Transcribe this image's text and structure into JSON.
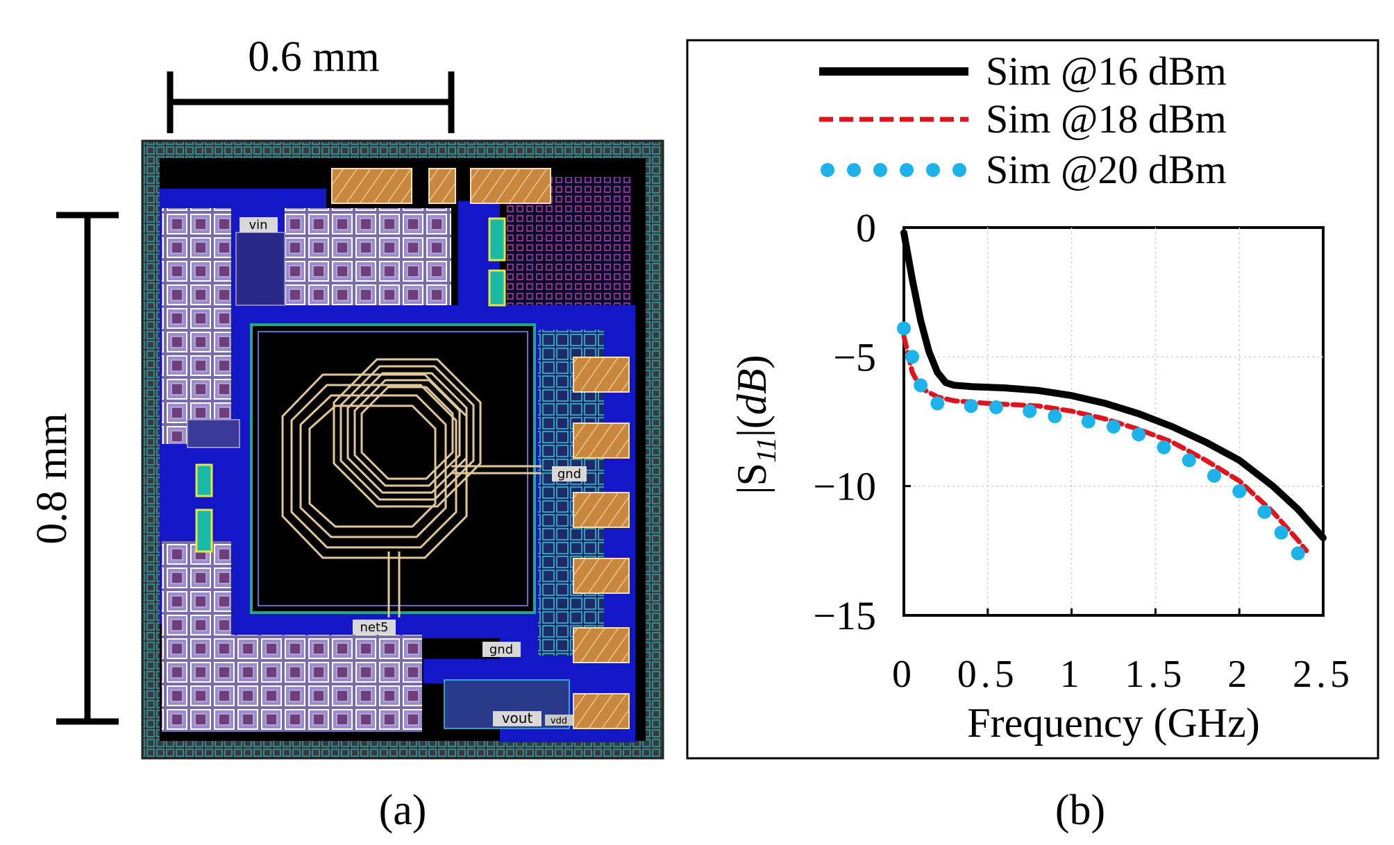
{
  "panel_a": {
    "width_label": "0.6 mm",
    "height_label": "0.8 mm",
    "caption": "(a)",
    "net_labels": {
      "vin": "vin",
      "gnd1": "gnd",
      "gnd2": "gnd",
      "net5": "net5",
      "vout": "vout",
      "vdd": "vdd"
    }
  },
  "panel_b": {
    "caption": "(b)"
  },
  "colors": {
    "sim16": "#000000",
    "sim18": "#e0141e",
    "sim20": "#1bb3ea"
  },
  "chart_data": {
    "type": "line",
    "title": "",
    "xlabel": "Frequency (GHz)",
    "ylabel": "|S11|(dB)",
    "ylabel_parts": {
      "pre": "|S",
      "sub": "11",
      "post": "|(",
      "unit": "dB",
      "close": ")"
    },
    "xlim": [
      0,
      2.5
    ],
    "ylim": [
      -15,
      0
    ],
    "xticks": [
      0,
      0.5,
      1,
      1.5,
      2,
      2.5
    ],
    "xtick_labels": [
      "0",
      "0.5",
      "1",
      "1.5",
      "2",
      "2.5"
    ],
    "yticks": [
      0,
      -5,
      -10,
      -15
    ],
    "ytick_labels": [
      "0",
      "-5",
      "-10",
      "-15"
    ],
    "grid": true,
    "legend_position": "top",
    "series": [
      {
        "name": "Sim @16 dBm",
        "style": "solid",
        "color": "#000000",
        "x": [
          0.0,
          0.05,
          0.1,
          0.15,
          0.2,
          0.25,
          0.3,
          0.4,
          0.6,
          0.8,
          1.0,
          1.2,
          1.4,
          1.6,
          1.8,
          2.0,
          2.2,
          2.35,
          2.5
        ],
        "y": [
          -0.2,
          -2.0,
          -3.6,
          -4.8,
          -5.6,
          -6.0,
          -6.1,
          -6.15,
          -6.2,
          -6.3,
          -6.5,
          -6.8,
          -7.2,
          -7.7,
          -8.3,
          -9.0,
          -10.0,
          -10.9,
          -12.0
        ]
      },
      {
        "name": "Sim @18 dBm",
        "style": "dashed",
        "color": "#e0141e",
        "x": [
          0.0,
          0.05,
          0.1,
          0.2,
          0.3,
          0.5,
          0.8,
          1.0,
          1.2,
          1.4,
          1.6,
          1.8,
          2.0,
          2.2,
          2.35,
          2.4
        ],
        "y": [
          -4.2,
          -5.6,
          -6.2,
          -6.55,
          -6.7,
          -6.8,
          -6.9,
          -7.1,
          -7.4,
          -7.8,
          -8.3,
          -9.0,
          -9.8,
          -11.0,
          -12.1,
          -12.5
        ]
      },
      {
        "name": "Sim @20 dBm",
        "style": "dotted",
        "color": "#1bb3ea",
        "x": [
          0.0,
          0.05,
          0.1,
          0.2,
          0.4,
          0.55,
          0.75,
          0.9,
          1.1,
          1.25,
          1.4,
          1.55,
          1.7,
          1.85,
          2.0,
          2.15,
          2.25,
          2.35
        ],
        "y": [
          -3.9,
          -5.0,
          -6.1,
          -6.8,
          -6.9,
          -6.95,
          -7.1,
          -7.3,
          -7.5,
          -7.7,
          -8.0,
          -8.5,
          -9.0,
          -9.6,
          -10.2,
          -11.0,
          -11.8,
          -12.6
        ]
      }
    ]
  }
}
